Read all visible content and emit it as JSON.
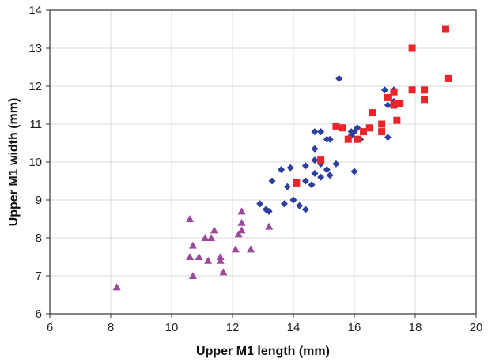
{
  "chart_data": {
    "type": "scatter",
    "title": "",
    "xlabel": "Upper M1 length (mm)",
    "ylabel": "Upper M1 width (mm)",
    "xlim": [
      6,
      20
    ],
    "ylim": [
      6,
      14
    ],
    "xticks": [
      "6",
      "8",
      "10",
      "12",
      "14",
      "16",
      "18",
      "20"
    ],
    "yticks": [
      "6",
      "7",
      "8",
      "9",
      "10",
      "11",
      "12",
      "13",
      "14"
    ],
    "grid": true,
    "legend": "none",
    "series": [
      {
        "marker": "triangle",
        "color": "#9b4a9b",
        "points": [
          [
            8.2,
            6.7
          ],
          [
            10.6,
            8.5
          ],
          [
            10.6,
            7.5
          ],
          [
            10.7,
            7.8
          ],
          [
            10.7,
            7.0
          ],
          [
            10.9,
            7.5
          ],
          [
            11.1,
            8.0
          ],
          [
            11.2,
            7.4
          ],
          [
            11.3,
            8.0
          ],
          [
            11.4,
            8.2
          ],
          [
            11.6,
            7.4
          ],
          [
            11.6,
            7.5
          ],
          [
            11.7,
            7.1
          ],
          [
            12.1,
            7.7
          ],
          [
            12.2,
            8.1
          ],
          [
            12.3,
            8.7
          ],
          [
            12.3,
            8.4
          ],
          [
            12.3,
            8.2
          ],
          [
            12.6,
            7.7
          ],
          [
            13.2,
            8.3
          ]
        ]
      },
      {
        "marker": "diamond",
        "color": "#2e3f9e",
        "points": [
          [
            12.9,
            8.9
          ],
          [
            13.1,
            8.75
          ],
          [
            13.2,
            8.7
          ],
          [
            13.3,
            9.5
          ],
          [
            13.6,
            9.8
          ],
          [
            13.7,
            8.9
          ],
          [
            13.8,
            9.35
          ],
          [
            13.9,
            9.85
          ],
          [
            14.0,
            9.0
          ],
          [
            14.2,
            8.85
          ],
          [
            14.4,
            9.9
          ],
          [
            14.4,
            9.5
          ],
          [
            14.4,
            8.75
          ],
          [
            14.6,
            9.4
          ],
          [
            14.7,
            10.35
          ],
          [
            14.7,
            10.05
          ],
          [
            14.7,
            9.7
          ],
          [
            14.7,
            10.8
          ],
          [
            14.9,
            10.8
          ],
          [
            14.9,
            9.95
          ],
          [
            14.9,
            9.6
          ],
          [
            15.1,
            9.8
          ],
          [
            15.1,
            10.6
          ],
          [
            15.2,
            9.65
          ],
          [
            15.2,
            10.6
          ],
          [
            15.4,
            9.95
          ],
          [
            15.5,
            12.2
          ],
          [
            15.9,
            10.8
          ],
          [
            15.9,
            10.7
          ],
          [
            16.0,
            10.8
          ],
          [
            16.1,
            10.9
          ],
          [
            16.2,
            10.6
          ],
          [
            16.0,
            9.75
          ],
          [
            17.0,
            11.9
          ],
          [
            17.1,
            11.5
          ],
          [
            17.1,
            10.65
          ],
          [
            17.3,
            11.9
          ],
          [
            17.3,
            11.6
          ]
        ]
      },
      {
        "marker": "square",
        "color": "#e8262a",
        "points": [
          [
            14.1,
            9.45
          ],
          [
            14.9,
            10.05
          ],
          [
            15.4,
            10.95
          ],
          [
            15.6,
            10.9
          ],
          [
            15.8,
            10.6
          ],
          [
            16.1,
            10.6
          ],
          [
            16.3,
            10.8
          ],
          [
            16.5,
            10.9
          ],
          [
            16.6,
            11.3
          ],
          [
            16.9,
            11.0
          ],
          [
            16.9,
            10.8
          ],
          [
            17.1,
            11.7
          ],
          [
            17.3,
            11.85
          ],
          [
            17.3,
            11.5
          ],
          [
            17.4,
            11.55
          ],
          [
            17.4,
            11.1
          ],
          [
            17.5,
            11.55
          ],
          [
            17.9,
            11.9
          ],
          [
            17.9,
            13.0
          ],
          [
            18.3,
            11.9
          ],
          [
            18.3,
            11.65
          ],
          [
            19.0,
            13.5
          ],
          [
            19.1,
            12.2
          ]
        ]
      }
    ]
  }
}
